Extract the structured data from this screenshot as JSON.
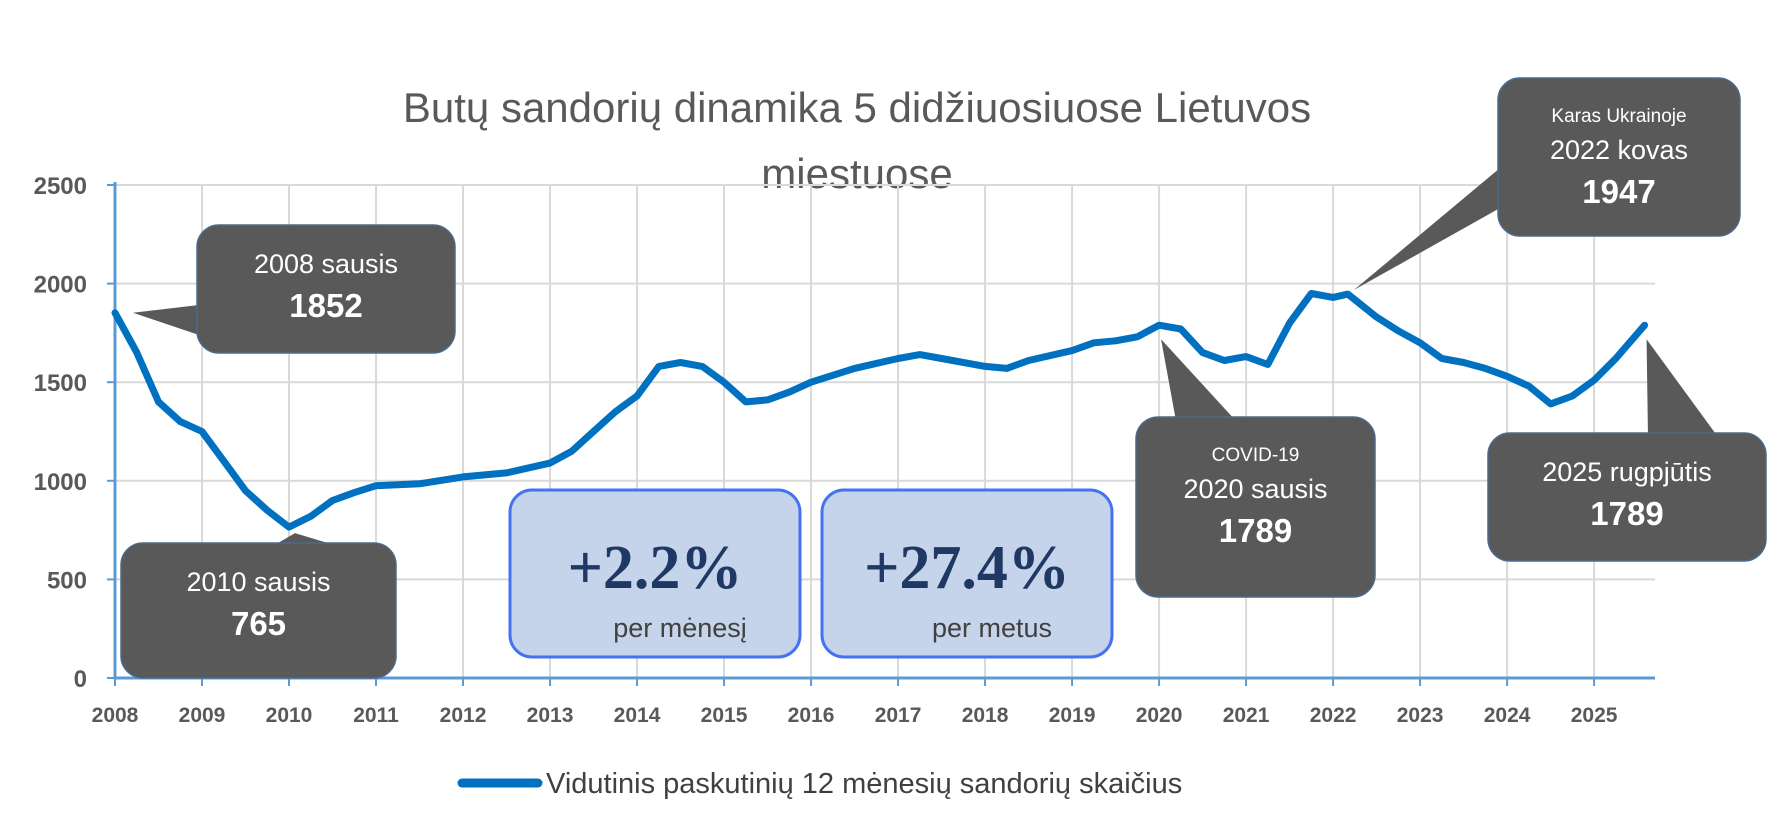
{
  "chart_data": {
    "type": "line",
    "title_line1": "Butų sandorių dinamika 5 didžiuosiuose  Lietuvos",
    "title_line2": "miestuose",
    "ylim": [
      0,
      2500
    ],
    "yticks": [
      "0",
      "500",
      "1000",
      "1500",
      "2000",
      "2500"
    ],
    "xticks": [
      "2008",
      "2009",
      "2010",
      "2011",
      "2012",
      "2013",
      "2014",
      "2015",
      "2016",
      "2017",
      "2018",
      "2019",
      "2020",
      "2021",
      "2022",
      "2023",
      "2024",
      "2025"
    ],
    "grid": true,
    "legend_position": "bottom",
    "series": [
      {
        "name": "Vidutinis paskutinių 12 mėnesių sandorių skaičius",
        "color": "#0070c0",
        "points": [
          [
            2008.0,
            1852
          ],
          [
            2008.25,
            1650
          ],
          [
            2008.5,
            1400
          ],
          [
            2008.75,
            1300
          ],
          [
            2009.0,
            1250
          ],
          [
            2009.25,
            1100
          ],
          [
            2009.5,
            950
          ],
          [
            2009.75,
            850
          ],
          [
            2010.0,
            765
          ],
          [
            2010.25,
            820
          ],
          [
            2010.5,
            900
          ],
          [
            2010.75,
            940
          ],
          [
            2011.0,
            975
          ],
          [
            2011.5,
            985
          ],
          [
            2012.0,
            1020
          ],
          [
            2012.5,
            1040
          ],
          [
            2013.0,
            1090
          ],
          [
            2013.25,
            1150
          ],
          [
            2013.5,
            1250
          ],
          [
            2013.75,
            1350
          ],
          [
            2014.0,
            1430
          ],
          [
            2014.25,
            1580
          ],
          [
            2014.5,
            1600
          ],
          [
            2014.75,
            1580
          ],
          [
            2015.0,
            1500
          ],
          [
            2015.25,
            1400
          ],
          [
            2015.5,
            1410
          ],
          [
            2015.75,
            1450
          ],
          [
            2016.0,
            1500
          ],
          [
            2016.5,
            1570
          ],
          [
            2017.0,
            1620
          ],
          [
            2017.25,
            1640
          ],
          [
            2017.5,
            1620
          ],
          [
            2018.0,
            1580
          ],
          [
            2018.25,
            1570
          ],
          [
            2018.5,
            1610
          ],
          [
            2019.0,
            1660
          ],
          [
            2019.25,
            1700
          ],
          [
            2019.5,
            1710
          ],
          [
            2019.75,
            1730
          ],
          [
            2020.0,
            1789
          ],
          [
            2020.25,
            1770
          ],
          [
            2020.5,
            1650
          ],
          [
            2020.75,
            1610
          ],
          [
            2021.0,
            1630
          ],
          [
            2021.25,
            1590
          ],
          [
            2021.5,
            1800
          ],
          [
            2021.75,
            1950
          ],
          [
            2022.0,
            1930
          ],
          [
            2022.17,
            1947
          ],
          [
            2022.5,
            1830
          ],
          [
            2022.75,
            1760
          ],
          [
            2023.0,
            1700
          ],
          [
            2023.25,
            1620
          ],
          [
            2023.5,
            1600
          ],
          [
            2023.75,
            1570
          ],
          [
            2024.0,
            1530
          ],
          [
            2024.25,
            1480
          ],
          [
            2024.5,
            1390
          ],
          [
            2024.75,
            1430
          ],
          [
            2025.0,
            1510
          ],
          [
            2025.25,
            1620
          ],
          [
            2025.58,
            1789
          ]
        ]
      }
    ],
    "annotations": [
      {
        "id": "start",
        "line1": "2008 sausis",
        "value": "1852",
        "x": 2008.0,
        "y": 1852
      },
      {
        "id": "min",
        "line1": "2010 sausis",
        "value": "765",
        "x": 2010.0,
        "y": 765
      },
      {
        "id": "covid",
        "small": "COVID-19",
        "line1": "2020 sausis",
        "value": "1789",
        "x": 2020.0,
        "y": 1789
      },
      {
        "id": "war",
        "small": "Karas Ukrainoje",
        "line1": "2022 kovas",
        "value": "1947",
        "x": 2022.17,
        "y": 1947
      },
      {
        "id": "last",
        "line1": "2025 rugpjūtis",
        "value": "1789",
        "x": 2025.58,
        "y": 1789
      }
    ],
    "stats": [
      {
        "value": "+2.2%",
        "label": "per mėnesį"
      },
      {
        "value": "+27.4%",
        "label": "per metus"
      }
    ]
  },
  "colors": {
    "line": "#0070c0",
    "callout": "#595959",
    "stat_fill": "#c5d4ea",
    "stat_border": "#4472f0",
    "grid": "#d9d9d9",
    "axis": "#5b9bd5"
  }
}
